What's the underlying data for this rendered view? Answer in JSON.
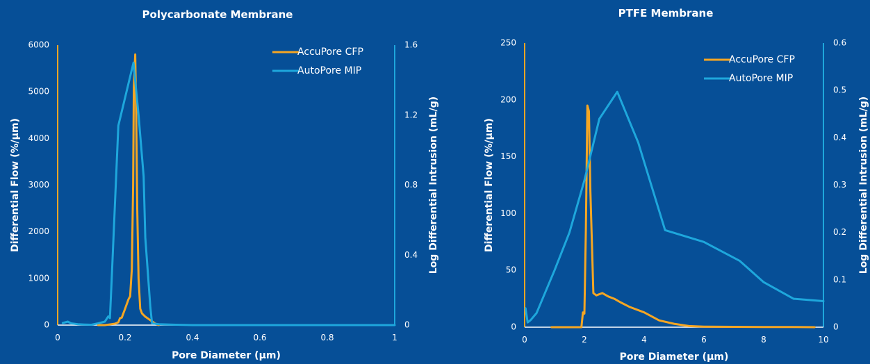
{
  "colors": {
    "background": "#064f97",
    "accucore": "#f5a623",
    "autopore": "#1ea7dc",
    "text": "#ffffff",
    "baseline": "#ffffff"
  },
  "chart_data": [
    {
      "type": "line",
      "title": "Polycarbonate Membrane",
      "xlabel": "Pore Diameter (µm)",
      "ylabel": "Differential Flow (%/µm)",
      "y2label": "Log Differential Intrusion (mL/g)",
      "xlim": [
        0,
        1
      ],
      "ylim": [
        0,
        6000
      ],
      "y2lim": [
        0,
        1.6
      ],
      "xticks": [
        "0",
        "0.2",
        "0.4",
        "0.6",
        "0.8",
        "1"
      ],
      "yticks": [
        "0",
        "1000",
        "2000",
        "3000",
        "4000",
        "5000",
        "6000"
      ],
      "y2ticks": [
        "0",
        "0.4",
        "0.8",
        "1.2",
        "1.6"
      ],
      "legend_position": "top-right",
      "series": [
        {
          "name": "AccuPore CFP",
          "axis": "left",
          "x": [
            0.12,
            0.14,
            0.16,
            0.17,
            0.18,
            0.185,
            0.19,
            0.2,
            0.21,
            0.215,
            0.22,
            0.224,
            0.226,
            0.23,
            0.233,
            0.236,
            0.24,
            0.245,
            0.25,
            0.26,
            0.27,
            0.28,
            0.29,
            0.3
          ],
          "y": [
            0,
            0,
            20,
            30,
            60,
            150,
            160,
            350,
            550,
            620,
            1200,
            3000,
            5100,
            5800,
            4500,
            2500,
            1000,
            350,
            250,
            180,
            130,
            80,
            30,
            0
          ]
        },
        {
          "name": "AutoPore MIP",
          "axis": "right",
          "x": [
            0.015,
            0.03,
            0.04,
            0.06,
            0.08,
            0.1,
            0.12,
            0.14,
            0.15,
            0.155,
            0.16,
            0.18,
            0.2,
            0.225,
            0.24,
            0.255,
            0.26,
            0.275,
            0.28,
            0.3,
            0.35,
            0.4,
            0.5,
            0.7,
            1.0
          ],
          "y": [
            0.012,
            0.02,
            0.01,
            0.005,
            0.003,
            0.002,
            0.01,
            0.02,
            0.05,
            0.04,
            0.25,
            1.14,
            1.3,
            1.5,
            1.2,
            0.85,
            0.5,
            0.1,
            0.01,
            0.005,
            0.002,
            0,
            0,
            0,
            0
          ]
        }
      ]
    },
    {
      "type": "line",
      "title": "PTFE Membrane",
      "xlabel": "Pore Diameter (µm)",
      "ylabel": "Differential Flow (%/µm)",
      "y2label": "Log Differential Intrusion (mL/g)",
      "xlim": [
        0,
        10
      ],
      "ylim": [
        0,
        250
      ],
      "y2lim": [
        0,
        0.6
      ],
      "xticks": [
        "0",
        "2",
        "4",
        "6",
        "8",
        "10"
      ],
      "yticks": [
        "0",
        "50",
        "100",
        "150",
        "200",
        "250"
      ],
      "y2ticks": [
        "0",
        "0.1",
        "0.2",
        "0.3",
        "0.4",
        "0.5",
        "0.6"
      ],
      "legend_position": "top-right",
      "series": [
        {
          "name": "AccuPore CFP",
          "axis": "left",
          "x": [
            0.9,
            1.5,
            1.9,
            1.95,
            2.0,
            2.05,
            2.1,
            2.15,
            2.2,
            2.3,
            2.4,
            2.6,
            2.8,
            3.0,
            3.2,
            3.5,
            4.0,
            4.5,
            5.0,
            5.5,
            6.0,
            7.0,
            8.0,
            9.0,
            9.7
          ],
          "y": [
            0,
            0,
            0,
            13,
            12,
            85,
            195,
            190,
            120,
            30,
            28,
            30,
            27,
            25,
            22,
            18,
            13,
            6,
            3,
            1,
            0.5,
            0.3,
            0.2,
            0.1,
            0
          ]
        },
        {
          "name": "AutoPore MIP",
          "axis": "right",
          "x": [
            0.03,
            0.1,
            0.2,
            0.4,
            0.6,
            1.0,
            1.5,
            2.0,
            2.5,
            3.1,
            3.8,
            4.7,
            6.0,
            7.2,
            8.0,
            9.0,
            10.0
          ],
          "y": [
            0.04,
            0.01,
            0.015,
            0.03,
            0.06,
            0.12,
            0.2,
            0.31,
            0.44,
            0.497,
            0.39,
            0.205,
            0.18,
            0.14,
            0.095,
            0.06,
            0.055
          ]
        }
      ]
    }
  ]
}
